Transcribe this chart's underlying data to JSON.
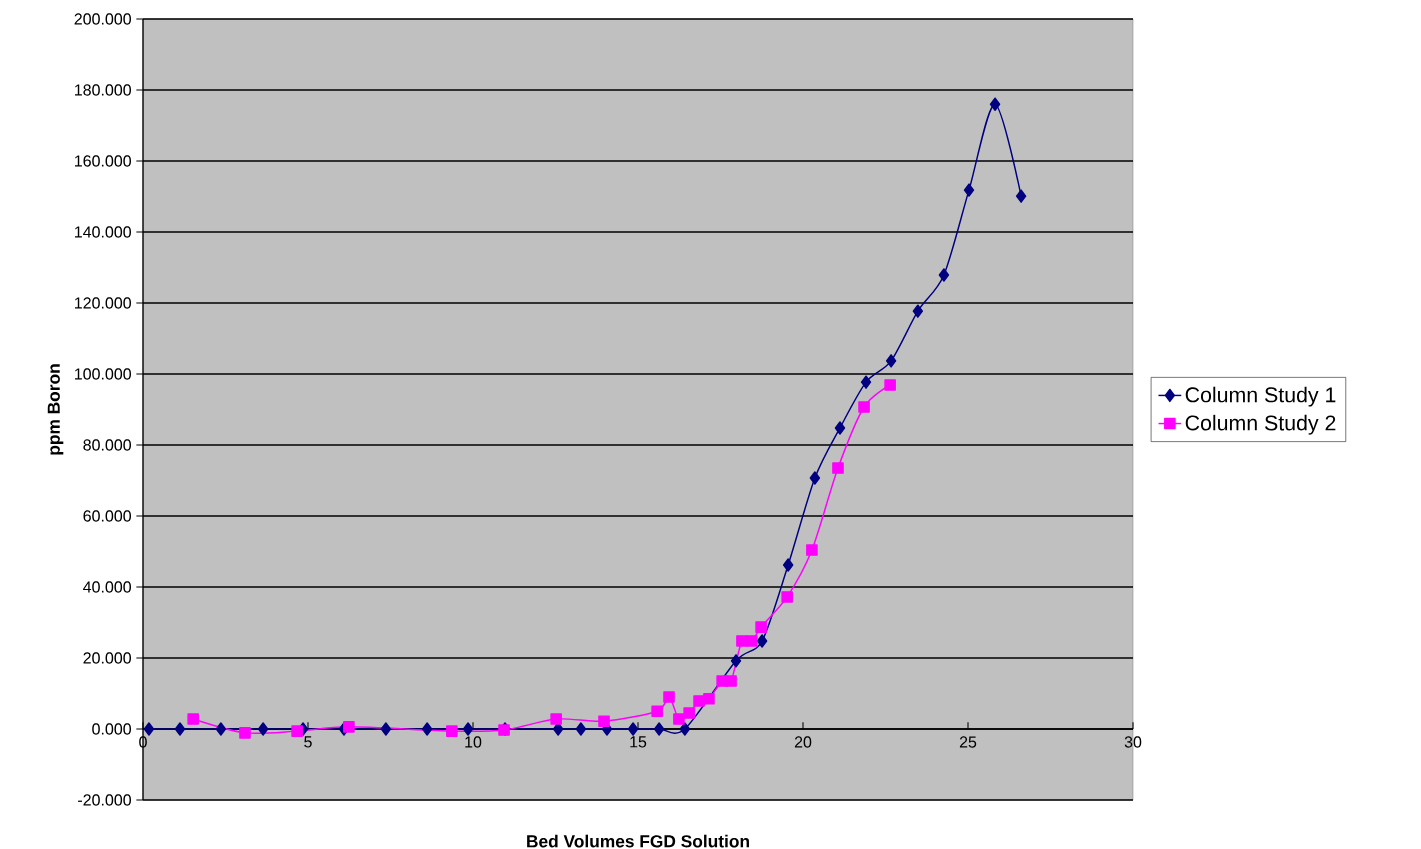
{
  "chart_data": {
    "type": "line",
    "xlabel": "Bed Volumes FGD Solution",
    "ylabel": "ppm Boron",
    "xlim": [
      0,
      30
    ],
    "xticks": [
      0,
      5,
      10,
      15,
      20,
      25,
      30
    ],
    "ylim": [
      -20,
      200
    ],
    "yticks": [
      {
        "value": -20,
        "label": "-20.000"
      },
      {
        "value": 0,
        "label": "0.000"
      },
      {
        "value": 20,
        "label": "20.000"
      },
      {
        "value": 40,
        "label": "40.000"
      },
      {
        "value": 60,
        "label": "60.000"
      },
      {
        "value": 80,
        "label": "80.000"
      },
      {
        "value": 100,
        "label": "100.000"
      },
      {
        "value": 120,
        "label": "120.000"
      },
      {
        "value": 140,
        "label": "140.000"
      },
      {
        "value": 160,
        "label": "160.000"
      },
      {
        "value": 180,
        "label": "180.000"
      },
      {
        "value": 200,
        "label": "200.000"
      }
    ],
    "grid": "y",
    "legend": "right",
    "line_style": "solid",
    "series": [
      {
        "name": "Column Study 1",
        "color": "#000080",
        "marker": "diamond",
        "x": [
          0.18,
          1.12,
          2.36,
          3.64,
          4.85,
          6.09,
          7.36,
          8.61,
          9.85,
          10.97,
          12.58,
          13.27,
          14.06,
          14.85,
          15.64,
          16.42,
          17.97,
          18.76,
          19.55,
          20.36,
          21.12,
          21.91,
          22.67,
          23.48,
          24.27,
          25.03,
          25.82,
          26.61
        ],
        "values": [
          0,
          0,
          0,
          0,
          0,
          0,
          0,
          0,
          0,
          0,
          0,
          0,
          0,
          0,
          0,
          0,
          19.2,
          24.8,
          46.2,
          70.7,
          84.8,
          97.7,
          103.7,
          117.7,
          127.9,
          151.8,
          176,
          150.1
        ]
      },
      {
        "name": "Column Study 2",
        "color": "#ff00ff",
        "marker": "square",
        "x": [
          1.52,
          3.09,
          4.67,
          6.24,
          9.36,
          10.94,
          12.52,
          13.97,
          15.58,
          15.94,
          16.24,
          16.55,
          16.85,
          17.15,
          17.55,
          17.82,
          18.15,
          18.45,
          18.73,
          19.52,
          20.27,
          21.06,
          21.85,
          22.64
        ],
        "values": [
          2.8,
          -1.1,
          -0.6,
          0.6,
          -0.6,
          -0.3,
          2.8,
          2.2,
          5,
          9,
          2.8,
          4.5,
          7.9,
          8.5,
          13.5,
          13.5,
          24.8,
          24.8,
          28.7,
          37.2,
          50.4,
          73.5,
          90.7,
          96.9
        ]
      }
    ]
  }
}
